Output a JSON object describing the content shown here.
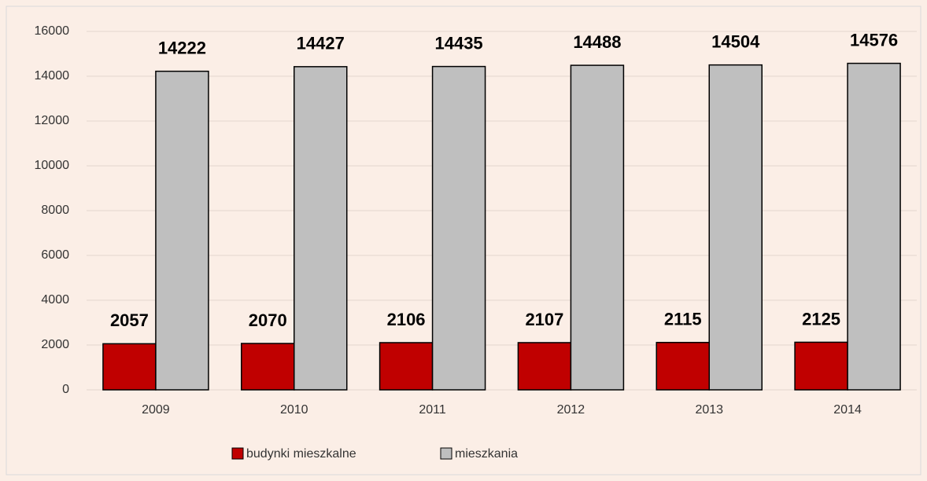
{
  "chart_data": {
    "type": "bar",
    "categories": [
      "2009",
      "2010",
      "2011",
      "2012",
      "2013",
      "2014"
    ],
    "series": [
      {
        "name": "budynki mieszkalne",
        "color": "#c00000",
        "values": [
          2057,
          2070,
          2106,
          2107,
          2115,
          2125
        ]
      },
      {
        "name": "mieszkania",
        "color": "#bfbfbf",
        "values": [
          14222,
          14427,
          14435,
          14488,
          14504,
          14576
        ]
      }
    ],
    "ylim": [
      0,
      16000
    ],
    "yticks": [
      0,
      2000,
      4000,
      6000,
      8000,
      10000,
      12000,
      14000,
      16000
    ],
    "grid": true
  }
}
